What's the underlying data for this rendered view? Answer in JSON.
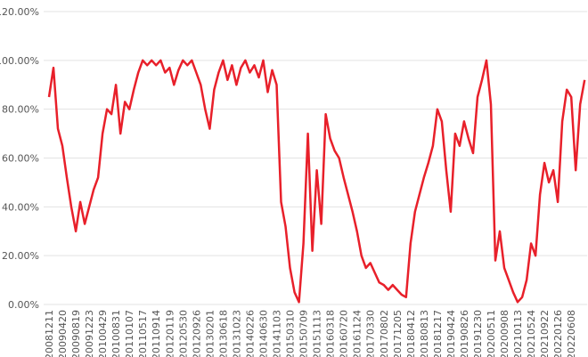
{
  "chart_data": {
    "type": "line",
    "categories": [
      "20081211",
      null,
      null,
      "20090420",
      null,
      null,
      "20090819",
      null,
      null,
      "20091223",
      null,
      null,
      "20100429",
      null,
      null,
      "20100831",
      null,
      null,
      "20110107",
      null,
      null,
      "20110517",
      null,
      null,
      "20110914",
      null,
      null,
      "20120119",
      null,
      null,
      "20120530",
      null,
      null,
      "20120926",
      null,
      null,
      "20130201",
      null,
      null,
      "20130618",
      null,
      null,
      "20131023",
      null,
      null,
      "20140226",
      null,
      null,
      "20140630",
      null,
      null,
      "20141103",
      null,
      null,
      "20150310",
      null,
      null,
      "20150709",
      null,
      null,
      "20151113",
      null,
      null,
      "20160318",
      null,
      null,
      "20160720",
      null,
      null,
      "20161124",
      null,
      null,
      "20170330",
      null,
      null,
      "20170802",
      null,
      null,
      "20171205",
      null,
      null,
      "20180412",
      null,
      null,
      "20180813",
      null,
      null,
      "20181217",
      null,
      null,
      "20190424",
      null,
      null,
      "20190826",
      null,
      null,
      "20191230",
      null,
      null,
      "20200511",
      null,
      null,
      "20200908",
      null,
      null,
      "20210113",
      null,
      null,
      "20210524",
      null,
      null,
      "20210922",
      null,
      null,
      "20220126",
      null,
      null,
      "20220608",
      null,
      null,
      null
    ],
    "values": [
      85,
      97,
      72,
      65,
      52,
      40,
      30,
      42,
      33,
      40,
      47,
      52,
      70,
      80,
      78,
      90,
      70,
      83,
      80,
      88,
      95,
      100,
      98,
      100,
      98,
      100,
      95,
      97,
      90,
      96,
      100,
      98,
      100,
      95,
      90,
      80,
      72,
      88,
      95,
      100,
      92,
      98,
      90,
      97,
      100,
      95,
      98,
      93,
      100,
      87,
      96,
      90,
      42,
      32,
      15,
      5,
      1,
      25,
      70,
      22,
      55,
      33,
      78,
      68,
      63,
      60,
      52,
      45,
      38,
      30,
      20,
      15,
      17,
      13,
      9,
      8,
      6,
      8,
      6,
      4,
      3,
      25,
      38,
      45,
      52,
      58,
      65,
      80,
      75,
      55,
      38,
      70,
      65,
      75,
      68,
      62,
      85,
      92,
      100,
      82,
      18,
      30,
      15,
      10,
      5,
      1,
      3,
      10,
      25,
      20,
      45,
      58,
      50,
      55,
      42,
      75,
      88,
      85,
      55,
      82,
      92
    ],
    "color": "#e8202a",
    "ylim": [
      0,
      120
    ],
    "yticks": [
      {
        "value": 0,
        "label": "0.00%"
      },
      {
        "value": 20,
        "label": "20.00%"
      },
      {
        "value": 40,
        "label": "40.00%"
      },
      {
        "value": 60,
        "label": "60.00%"
      },
      {
        "value": 80,
        "label": "80.00%"
      },
      {
        "value": 100,
        "label": "100.00%"
      },
      {
        "value": 120,
        "label": "120.00%"
      }
    ],
    "grid": true
  }
}
